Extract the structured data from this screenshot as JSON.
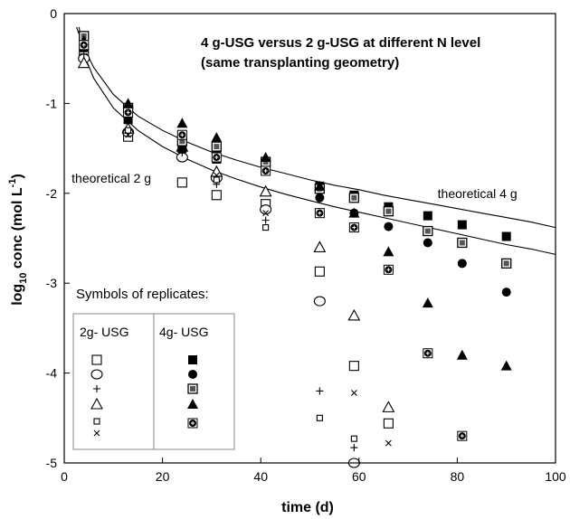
{
  "chart_data": {
    "type": "scatter",
    "title_lines": [
      "4 g-USG versus 2 g-USG at different N level",
      "(same transplanting geometry)"
    ],
    "xlabel": "time (d)",
    "ylabel": "log10 conc (mol L-1)",
    "ylabel_parts": {
      "pre": "log",
      "sub": "10",
      "mid": " conc (mol L",
      "sup": "-1",
      "post": ")"
    },
    "xlim": [
      0,
      100
    ],
    "ylim": [
      -5,
      0
    ],
    "x_ticks": [
      0,
      20,
      40,
      60,
      80,
      100
    ],
    "y_ticks": [
      0,
      -1,
      -2,
      -3,
      -4,
      -5
    ],
    "grid": false,
    "curves": [
      {
        "name": "theoretical 4 g",
        "points": [
          [
            2.5,
            -0.15
          ],
          [
            4,
            -0.38
          ],
          [
            6,
            -0.6
          ],
          [
            10,
            -0.9
          ],
          [
            15,
            -1.14
          ],
          [
            20,
            -1.3
          ],
          [
            25,
            -1.43
          ],
          [
            30,
            -1.54
          ],
          [
            35,
            -1.63
          ],
          [
            40,
            -1.71
          ],
          [
            45,
            -1.78
          ],
          [
            50,
            -1.85
          ],
          [
            55,
            -1.91
          ],
          [
            60,
            -1.96
          ],
          [
            65,
            -2.02
          ],
          [
            70,
            -2.07
          ],
          [
            75,
            -2.12
          ],
          [
            80,
            -2.17
          ],
          [
            85,
            -2.22
          ],
          [
            90,
            -2.27
          ],
          [
            95,
            -2.32
          ],
          [
            100,
            -2.38
          ]
        ]
      },
      {
        "name": "theoretical 2 g",
        "points": [
          [
            3,
            -0.15
          ],
          [
            4,
            -0.45
          ],
          [
            6,
            -0.72
          ],
          [
            10,
            -1.05
          ],
          [
            15,
            -1.3
          ],
          [
            20,
            -1.48
          ],
          [
            25,
            -1.62
          ],
          [
            30,
            -1.74
          ],
          [
            35,
            -1.84
          ],
          [
            40,
            -1.93
          ],
          [
            45,
            -2.01
          ],
          [
            50,
            -2.08
          ],
          [
            55,
            -2.15
          ],
          [
            60,
            -2.21
          ],
          [
            65,
            -2.27
          ],
          [
            70,
            -2.33
          ],
          [
            75,
            -2.39
          ],
          [
            80,
            -2.45
          ],
          [
            85,
            -2.51
          ],
          [
            90,
            -2.57
          ],
          [
            95,
            -2.62
          ],
          [
            100,
            -2.68
          ]
        ]
      }
    ],
    "annotations": [
      {
        "text": "theoretical 2 g",
        "x": 1.5,
        "y": -1.88
      },
      {
        "text": "theoretical 4 g",
        "x": 76,
        "y": -2.05
      }
    ],
    "series": [
      {
        "name": "2g-USG rep1",
        "marker": "square-open",
        "points": [
          [
            4,
            -0.42
          ],
          [
            13,
            -1.37
          ],
          [
            24,
            -1.88
          ],
          [
            31,
            -2.02
          ],
          [
            41,
            -2.12
          ],
          [
            52,
            -2.87
          ],
          [
            59,
            -3.92
          ],
          [
            66,
            -4.56
          ]
        ]
      },
      {
        "name": "2g-USG rep2",
        "marker": "circle-open",
        "points": [
          [
            4,
            -0.5
          ],
          [
            13,
            -1.32
          ],
          [
            24,
            -1.6
          ],
          [
            31,
            -1.83
          ],
          [
            41,
            -2.18
          ],
          [
            52,
            -3.2
          ],
          [
            59,
            -5.0
          ]
        ]
      },
      {
        "name": "2g-USG rep3",
        "marker": "plus",
        "points": [
          [
            4,
            -0.45
          ],
          [
            13,
            -1.32
          ],
          [
            24,
            -1.55
          ],
          [
            31,
            -1.9
          ],
          [
            41,
            -2.3
          ],
          [
            52,
            -4.2
          ],
          [
            59,
            -4.83
          ]
        ]
      },
      {
        "name": "2g-USG rep4",
        "marker": "triangle-open",
        "points": [
          [
            4,
            -0.55
          ],
          [
            13,
            -1.28
          ],
          [
            24,
            -1.48
          ],
          [
            31,
            -1.76
          ],
          [
            41,
            -1.98
          ],
          [
            52,
            -2.6
          ],
          [
            59,
            -3.36
          ],
          [
            66,
            -4.38
          ]
        ]
      },
      {
        "name": "2g-USG rep5",
        "marker": "square-small-open",
        "points": [
          [
            4,
            -0.35
          ],
          [
            13,
            -1.3
          ],
          [
            24,
            -1.5
          ],
          [
            31,
            -1.85
          ],
          [
            41,
            -2.38
          ],
          [
            52,
            -4.5
          ],
          [
            59,
            -4.73
          ]
        ]
      },
      {
        "name": "2g-USG rep6",
        "marker": "cross",
        "points": [
          [
            4,
            -0.4
          ],
          [
            13,
            -1.35
          ],
          [
            24,
            -1.52
          ],
          [
            31,
            -1.8
          ],
          [
            41,
            -2.22
          ],
          [
            59,
            -4.22
          ],
          [
            66,
            -4.78
          ]
        ]
      },
      {
        "name": "4g-USG rep1",
        "marker": "square-filled",
        "points": [
          [
            4,
            -0.38
          ],
          [
            13,
            -1.18
          ],
          [
            24,
            -1.5
          ],
          [
            31,
            -1.62
          ],
          [
            41,
            -1.72
          ],
          [
            52,
            -1.92
          ],
          [
            59,
            -2.02
          ],
          [
            66,
            -2.15
          ],
          [
            74,
            -2.25
          ],
          [
            81,
            -2.35
          ],
          [
            90,
            -2.48
          ]
        ]
      },
      {
        "name": "4g-USG rep2",
        "marker": "circle-filled",
        "points": [
          [
            4,
            -0.32
          ],
          [
            13,
            -1.12
          ],
          [
            24,
            -1.38
          ],
          [
            31,
            -1.55
          ],
          [
            41,
            -1.7
          ],
          [
            52,
            -2.05
          ],
          [
            59,
            -2.22
          ],
          [
            66,
            -2.37
          ],
          [
            74,
            -2.55
          ],
          [
            81,
            -2.78
          ],
          [
            90,
            -3.1
          ]
        ]
      },
      {
        "name": "4g-USG rep3",
        "marker": "square-dot",
        "points": [
          [
            4,
            -0.25
          ],
          [
            13,
            -1.05
          ],
          [
            24,
            -1.42
          ],
          [
            31,
            -1.48
          ],
          [
            41,
            -1.65
          ],
          [
            52,
            -1.95
          ],
          [
            59,
            -2.05
          ],
          [
            66,
            -2.2
          ],
          [
            74,
            -2.42
          ],
          [
            81,
            -2.55
          ],
          [
            90,
            -2.78
          ]
        ]
      },
      {
        "name": "4g-USG rep4",
        "marker": "triangle-filled",
        "points": [
          [
            4,
            -0.3
          ],
          [
            13,
            -1.0
          ],
          [
            24,
            -1.22
          ],
          [
            31,
            -1.38
          ],
          [
            41,
            -1.6
          ],
          [
            52,
            -1.92
          ],
          [
            59,
            -2.22
          ],
          [
            66,
            -2.65
          ],
          [
            74,
            -3.22
          ],
          [
            81,
            -3.8
          ],
          [
            90,
            -3.92
          ]
        ]
      },
      {
        "name": "4g-USG rep5",
        "marker": "diamond-dot",
        "points": [
          [
            4,
            -0.35
          ],
          [
            13,
            -1.1
          ],
          [
            24,
            -1.35
          ],
          [
            31,
            -1.6
          ],
          [
            41,
            -1.75
          ],
          [
            52,
            -2.22
          ],
          [
            59,
            -2.38
          ],
          [
            66,
            -2.85
          ],
          [
            74,
            -3.78
          ],
          [
            81,
            -4.7
          ]
        ]
      }
    ]
  },
  "legend": {
    "title": "Symbols of replicates:",
    "groups": [
      {
        "label": "2g- USG",
        "markers": [
          "square-open",
          "circle-open",
          "plus",
          "triangle-open",
          "square-small-open",
          "cross"
        ]
      },
      {
        "label": "4g- USG",
        "markers": [
          "square-filled",
          "circle-filled",
          "square-dot",
          "triangle-filled",
          "diamond-dot"
        ]
      }
    ]
  }
}
